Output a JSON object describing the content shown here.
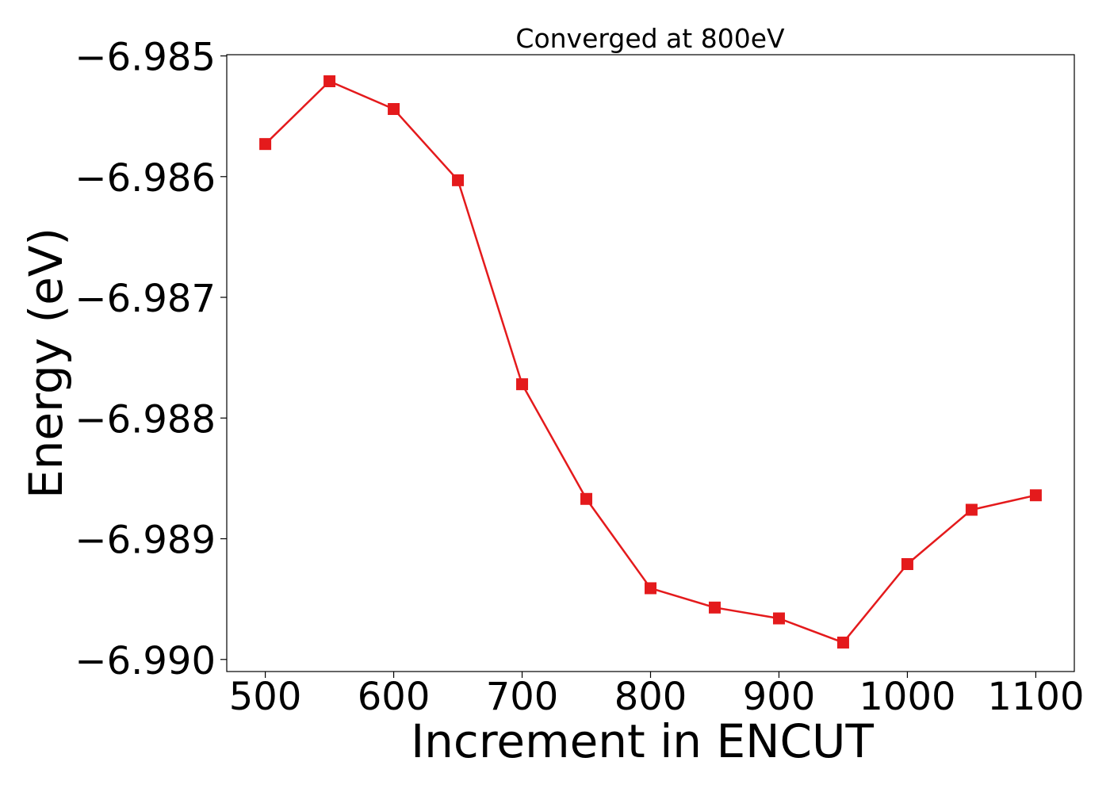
{
  "chart_data": {
    "type": "line",
    "title": "Converged at 800eV",
    "xlabel": "Increment in ENCUT",
    "ylabel": "Energy (eV)",
    "x": [
      500,
      550,
      600,
      650,
      700,
      750,
      800,
      850,
      900,
      950,
      1000,
      1050,
      1100
    ],
    "series": [
      {
        "values": [
          -6.98573,
          -6.98521,
          -6.98544,
          -6.98603,
          -6.98772,
          -6.98867,
          -6.98941,
          -6.98957,
          -6.98966,
          -6.98986,
          -6.98921,
          -6.98876,
          -6.98864
        ],
        "color": "#e41a1c",
        "marker": "square"
      }
    ],
    "xlim": [
      470,
      1130
    ],
    "ylim": [
      -6.9901,
      -6.98499
    ],
    "xticks": [
      500,
      600,
      700,
      800,
      900,
      1000,
      1100
    ],
    "xtick_labels": [
      "500",
      "600",
      "700",
      "800",
      "900",
      "1000",
      "1100"
    ],
    "yticks": [
      -6.985,
      -6.986,
      -6.987,
      -6.988,
      -6.989,
      -6.99
    ],
    "ytick_labels": [
      "−6.985",
      "−6.986",
      "−6.987",
      "−6.988",
      "−6.989",
      "−6.990"
    ],
    "grid": false,
    "legend": "none"
  }
}
